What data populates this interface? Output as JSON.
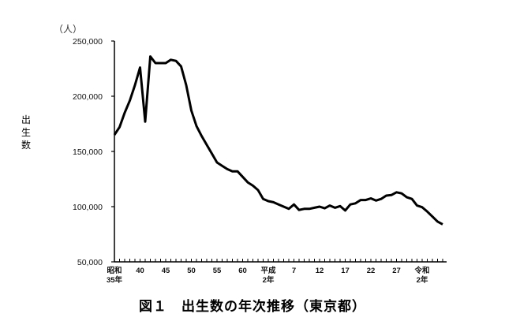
{
  "chart_data": {
    "type": "line",
    "title": "図１　出生数の年次推移（東京都）",
    "xlabel": "",
    "ylabel": "出生数",
    "y_unit": "（人）",
    "ylim": [
      50000,
      250000
    ],
    "yticks": [
      50000,
      100000,
      150000,
      200000,
      250000
    ],
    "ytick_labels": [
      "50,000",
      "100,000",
      "150,000",
      "200,000",
      "250,000"
    ],
    "xtick_labels": [
      {
        "year": 1960,
        "label": [
          "昭和",
          "35年"
        ]
      },
      {
        "year": 1965,
        "label": [
          "40"
        ]
      },
      {
        "year": 1970,
        "label": [
          "45"
        ]
      },
      {
        "year": 1975,
        "label": [
          "50"
        ]
      },
      {
        "year": 1980,
        "label": [
          "55"
        ]
      },
      {
        "year": 1985,
        "label": [
          "60"
        ]
      },
      {
        "year": 1990,
        "label": [
          "平成",
          "2年"
        ]
      },
      {
        "year": 1995,
        "label": [
          "7"
        ]
      },
      {
        "year": 2000,
        "label": [
          "12"
        ]
      },
      {
        "year": 2005,
        "label": [
          "17"
        ]
      },
      {
        "year": 2010,
        "label": [
          "22"
        ]
      },
      {
        "year": 2015,
        "label": [
          "27"
        ]
      },
      {
        "year": 2020,
        "label": [
          "令和",
          "2年"
        ]
      }
    ],
    "grid": false,
    "legend": null,
    "x": [
      1960,
      1961,
      1962,
      1963,
      1964,
      1965,
      1966,
      1967,
      1968,
      1969,
      1970,
      1971,
      1972,
      1973,
      1974,
      1975,
      1976,
      1977,
      1978,
      1979,
      1980,
      1981,
      1982,
      1983,
      1984,
      1985,
      1986,
      1987,
      1988,
      1989,
      1990,
      1991,
      1992,
      1993,
      1994,
      1995,
      1996,
      1997,
      1998,
      1999,
      2000,
      2001,
      2002,
      2003,
      2004,
      2005,
      2006,
      2007,
      2008,
      2009,
      2010,
      2011,
      2012,
      2013,
      2014,
      2015,
      2016,
      2017,
      2018,
      2019,
      2020,
      2021,
      2022,
      2023,
      2024
    ],
    "series": [
      {
        "name": "出生数",
        "values": [
          165000,
          172000,
          185000,
          196000,
          210000,
          226000,
          177000,
          236000,
          230000,
          230000,
          230000,
          233000,
          232000,
          227000,
          210000,
          187000,
          173000,
          164000,
          156000,
          148000,
          140000,
          137000,
          134000,
          132000,
          132000,
          127000,
          122000,
          119000,
          115000,
          107000,
          105000,
          104000,
          102000,
          100000,
          98000,
          102000,
          97000,
          98000,
          98000,
          99000,
          100000,
          98500,
          101000,
          99000,
          100500,
          96500,
          102000,
          103000,
          106000,
          106000,
          107500,
          105500,
          107000,
          110000,
          110500,
          113000,
          112000,
          108500,
          107000,
          101000,
          99500,
          95500,
          91000,
          86500,
          84000
        ]
      }
    ]
  },
  "labels": {
    "unit": "（人）",
    "ylabel": "出生数",
    "title": "図１　出生数の年次推移（東京都）"
  }
}
